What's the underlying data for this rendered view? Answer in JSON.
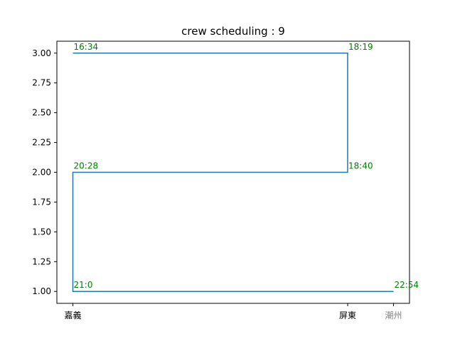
{
  "chart_data": {
    "type": "line",
    "title": "crew scheduling : 9",
    "xlabel": "",
    "ylabel": "",
    "x_categories": [
      "嘉義",
      "屏東",
      "潮州"
    ],
    "x_tick_colors": [
      "#000000",
      "#000000",
      "#808080"
    ],
    "x_values": [
      0.0,
      1.0,
      1.1667
    ],
    "xlim": [
      -0.0583,
      1.225
    ],
    "ylim": [
      0.9,
      3.1
    ],
    "yticks": [
      1.0,
      1.25,
      1.5,
      1.75,
      2.0,
      2.25,
      2.5,
      2.75,
      3.0
    ],
    "ytick_labels": [
      "1.00",
      "1.25",
      "1.50",
      "1.75",
      "2.00",
      "2.25",
      "2.50",
      "2.75",
      "3.00"
    ],
    "series": [
      {
        "color": "#1f77b4",
        "points": [
          {
            "x": 0.0,
            "y": 3.0
          },
          {
            "x": 1.0,
            "y": 3.0
          },
          {
            "x": 1.0,
            "y": 2.0
          },
          {
            "x": 0.0,
            "y": 2.0
          },
          {
            "x": 0.0,
            "y": 1.0
          },
          {
            "x": 1.1667,
            "y": 1.0
          }
        ]
      }
    ],
    "annotations": [
      {
        "text": "16:34",
        "x": 0.0,
        "y": 3.0
      },
      {
        "text": "18:19",
        "x": 1.0,
        "y": 3.0
      },
      {
        "text": "20:28",
        "x": 0.0,
        "y": 2.0
      },
      {
        "text": "18:40",
        "x": 1.0,
        "y": 2.0
      },
      {
        "text": "21:0",
        "x": 0.0,
        "y": 1.0
      },
      {
        "text": "22:54",
        "x": 1.1667,
        "y": 1.0
      }
    ],
    "annotation_color": "#008000",
    "grid": false,
    "legend": "none"
  }
}
